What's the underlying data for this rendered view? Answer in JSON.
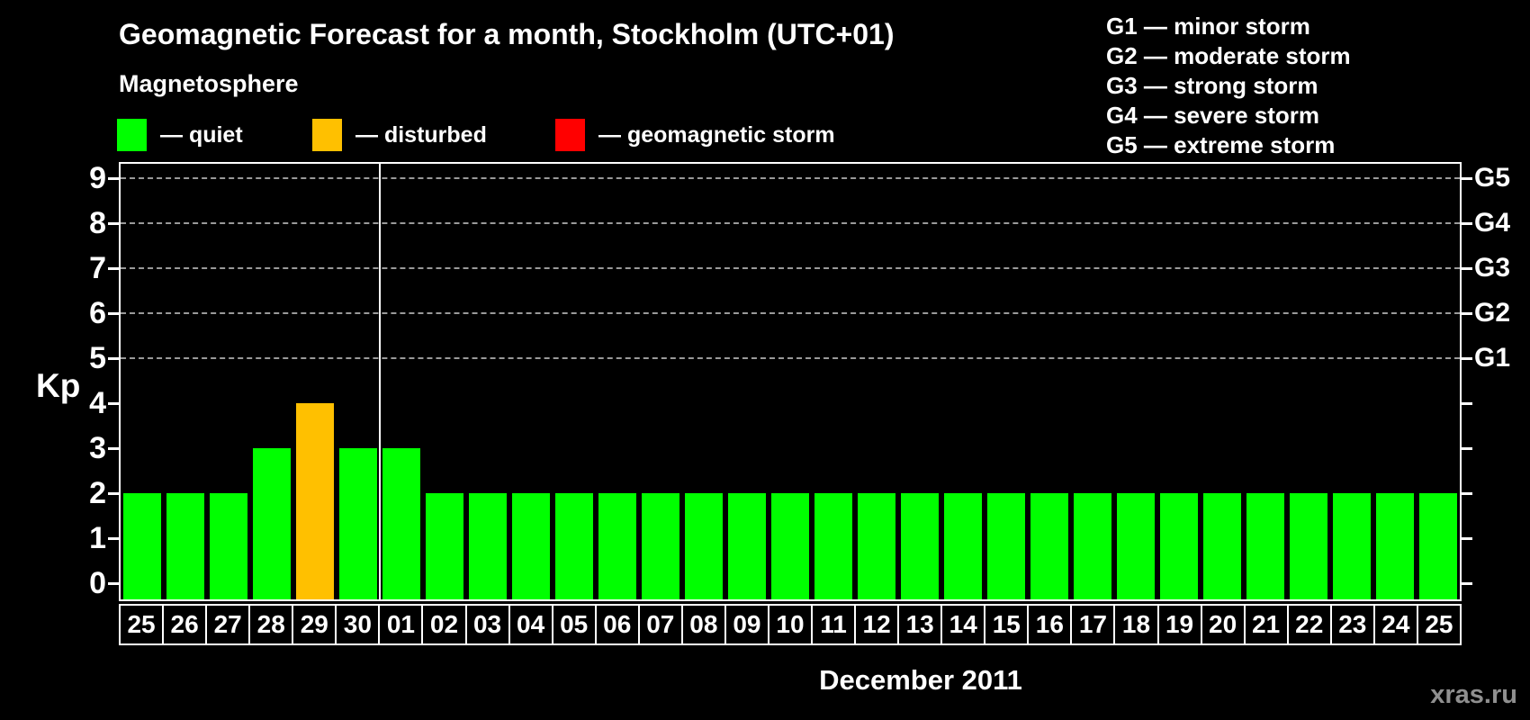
{
  "header": {
    "title": "Geomagnetic Forecast for a month, Stockholm (UTC+01)",
    "subtitle": "Magnetosphere"
  },
  "legend": {
    "items": [
      {
        "key": "quiet",
        "label": "— quiet",
        "color": "#00ff00"
      },
      {
        "key": "disturbed",
        "label": "— disturbed",
        "color": "#ffc000"
      },
      {
        "key": "storm",
        "label": "— geomagnetic storm",
        "color": "#ff0000"
      }
    ]
  },
  "storm_scale_legend": {
    "items": [
      "G1 — minor storm",
      "G2 — moderate storm",
      "G3 — strong storm",
      "G4 — severe storm",
      "G5 — extreme storm"
    ]
  },
  "chart_data": {
    "type": "bar",
    "title": "Geomagnetic Forecast for a month, Stockholm (UTC+01)",
    "ylabel": "Kp",
    "xlabel": "December 2011",
    "ylim": [
      0,
      9
    ],
    "yticks": [
      0,
      1,
      2,
      3,
      4,
      5,
      6,
      7,
      8,
      9
    ],
    "gridlines_at": [
      5,
      6,
      7,
      8,
      9
    ],
    "grid": true,
    "right_axis_labels": [
      {
        "kp": 5,
        "label": "G1"
      },
      {
        "kp": 6,
        "label": "G2"
      },
      {
        "kp": 7,
        "label": "G3"
      },
      {
        "kp": 8,
        "label": "G4"
      },
      {
        "kp": 9,
        "label": "G5"
      }
    ],
    "categories": [
      "25",
      "26",
      "27",
      "28",
      "29",
      "30",
      "01",
      "02",
      "03",
      "04",
      "05",
      "06",
      "07",
      "08",
      "09",
      "10",
      "11",
      "12",
      "13",
      "14",
      "15",
      "16",
      "17",
      "18",
      "19",
      "20",
      "21",
      "22",
      "23",
      "24",
      "25"
    ],
    "values": [
      2,
      2,
      2,
      3,
      4,
      3,
      3,
      2,
      2,
      2,
      2,
      2,
      2,
      2,
      2,
      2,
      2,
      2,
      2,
      2,
      2,
      2,
      2,
      2,
      2,
      2,
      2,
      2,
      2,
      2,
      2
    ],
    "statuses": [
      "quiet",
      "quiet",
      "quiet",
      "quiet",
      "disturbed",
      "quiet",
      "quiet",
      "quiet",
      "quiet",
      "quiet",
      "quiet",
      "quiet",
      "quiet",
      "quiet",
      "quiet",
      "quiet",
      "quiet",
      "quiet",
      "quiet",
      "quiet",
      "quiet",
      "quiet",
      "quiet",
      "quiet",
      "quiet",
      "quiet",
      "quiet",
      "quiet",
      "quiet",
      "quiet",
      "quiet"
    ],
    "colors": {
      "quiet": "#00ff00",
      "disturbed": "#ffc000",
      "storm": "#ff0000"
    },
    "month_separator_after_index": 5
  },
  "footer": {
    "xaxis_title": "December 2011",
    "watermark": "xras.ru"
  }
}
